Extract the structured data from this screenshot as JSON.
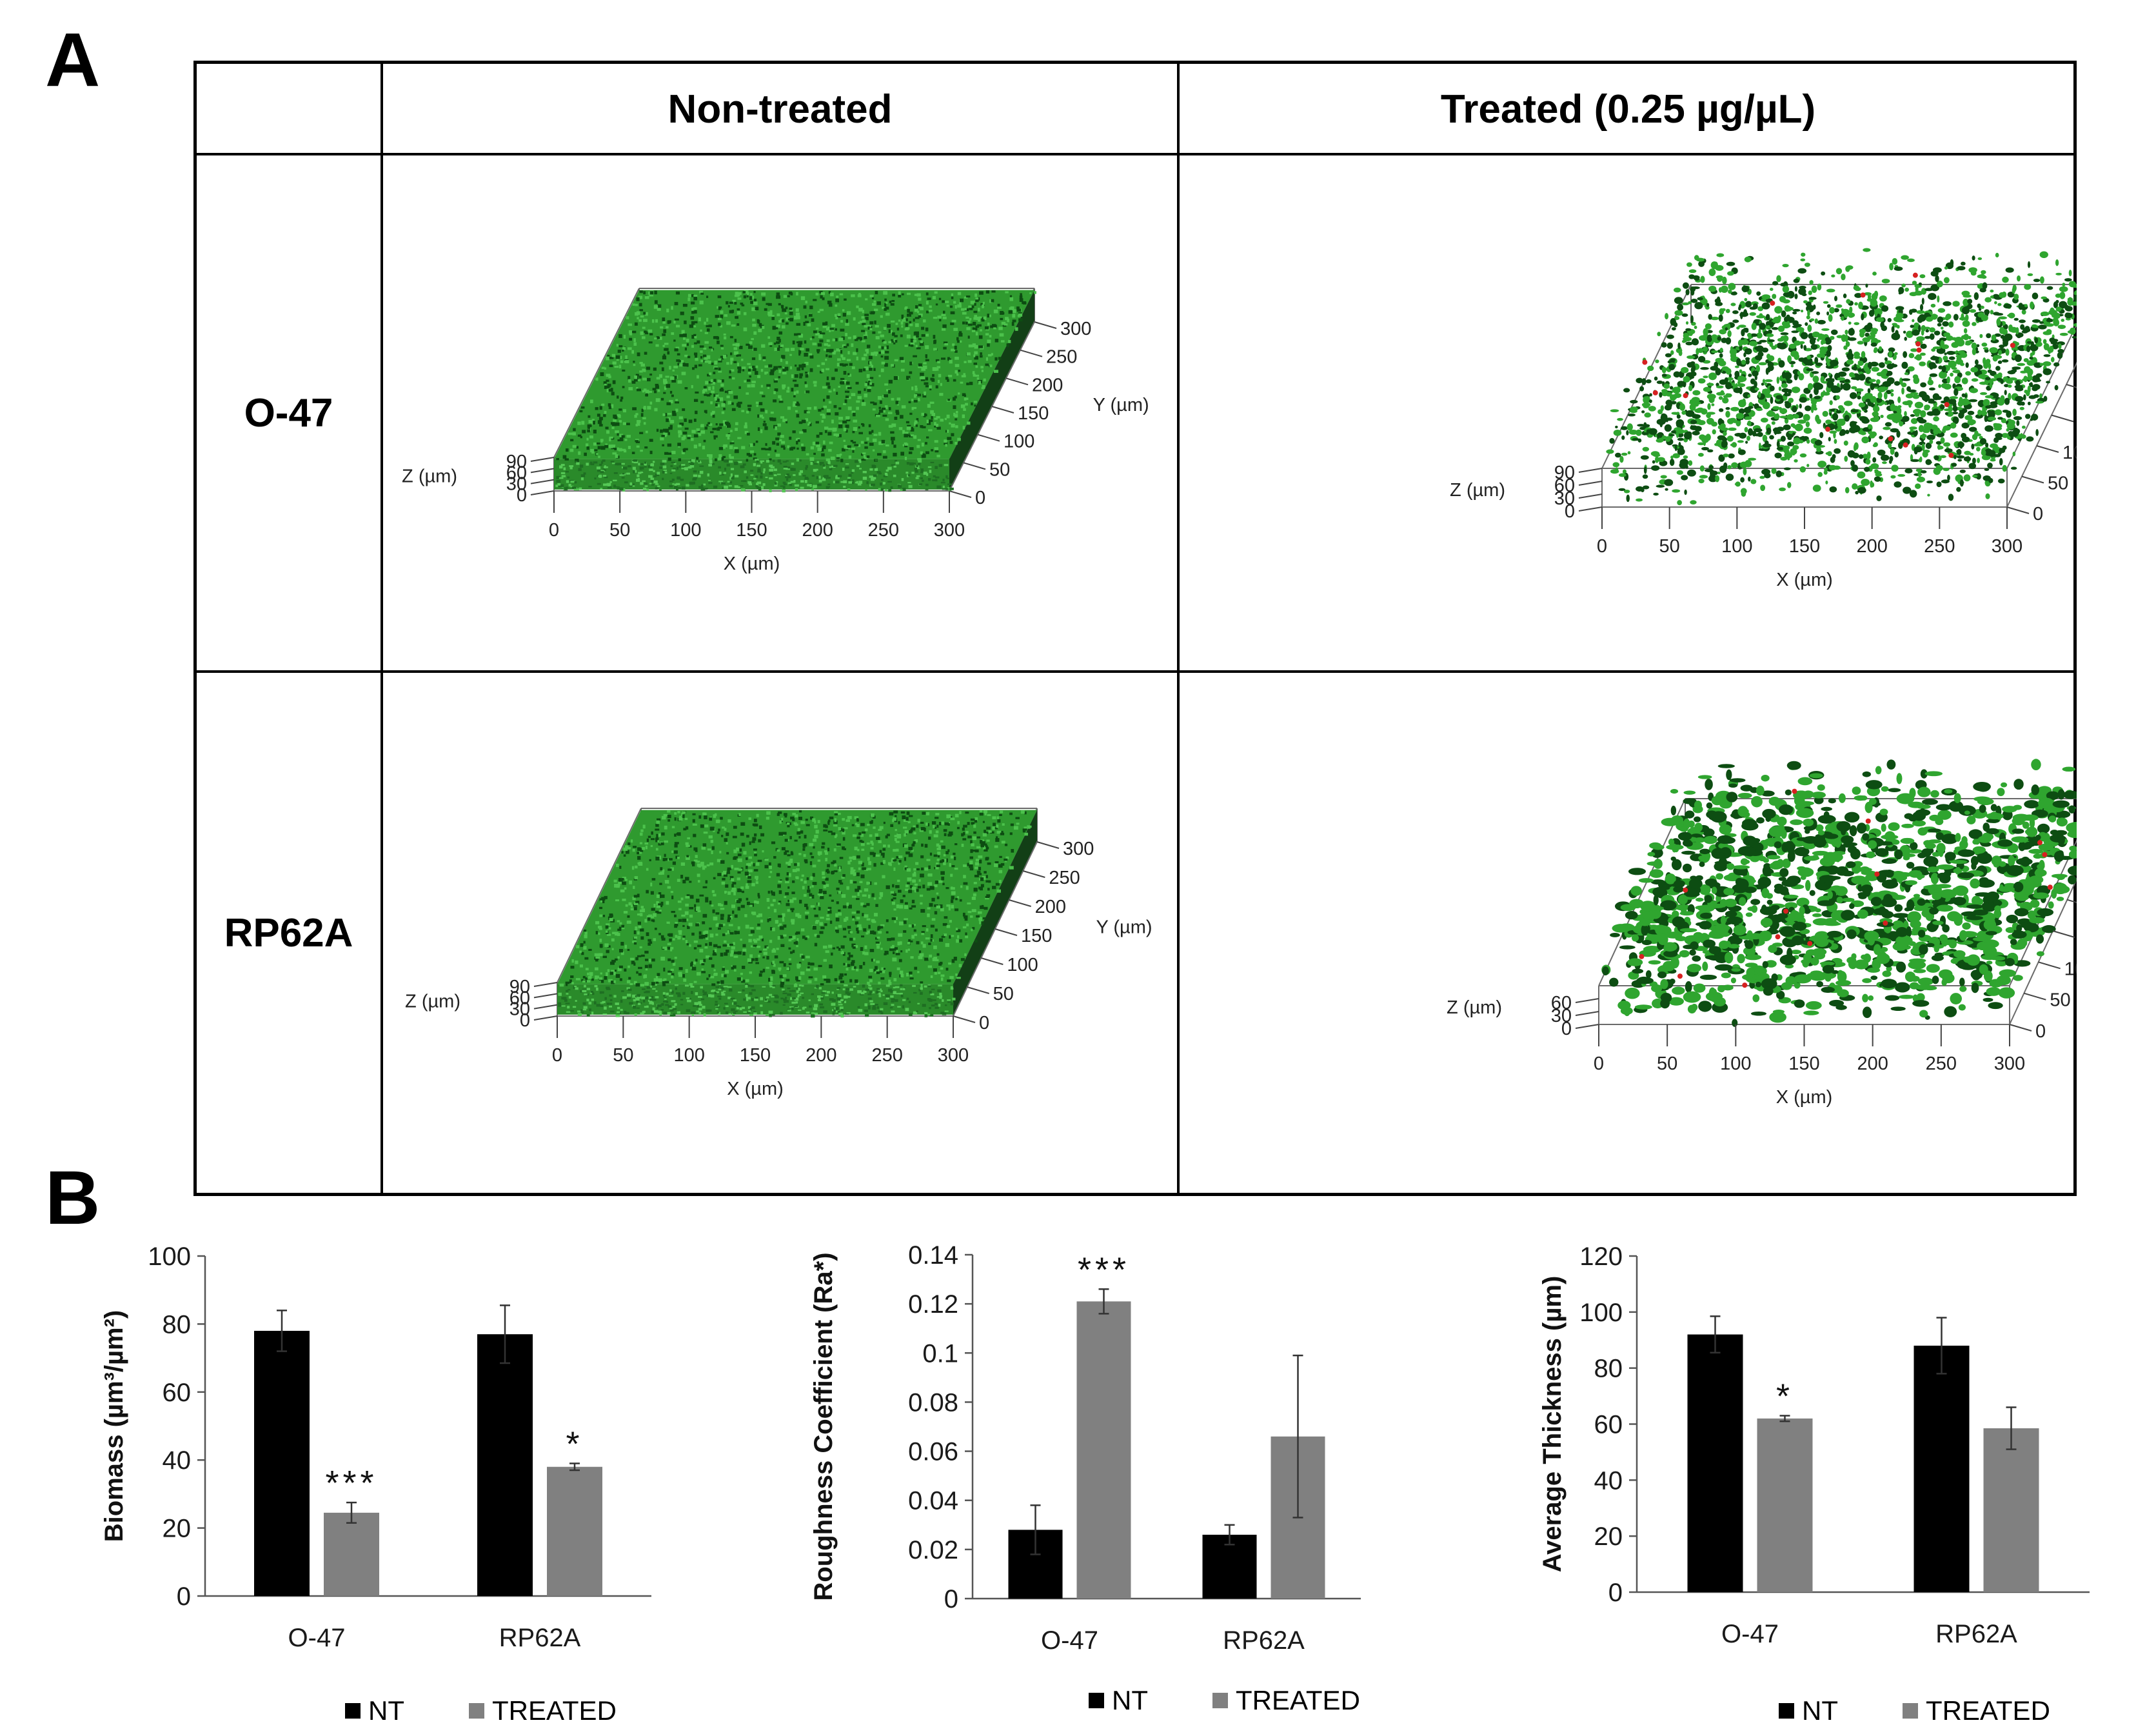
{
  "panel_a": {
    "letter": "A",
    "columns": [
      "Non-treated",
      "Treated (0.25 µg/µL)"
    ],
    "rows": [
      "O-47",
      "RP62A"
    ],
    "axis_labels": {
      "x": "X (µm)",
      "y": "Y (µm)",
      "z": "Z (µm)"
    },
    "x_ticks": [
      "0",
      "50",
      "100",
      "150",
      "200",
      "250",
      "300"
    ],
    "y_ticks": [
      "0",
      "50",
      "100",
      "150",
      "200",
      "250",
      "300"
    ],
    "z_ticks_full": [
      "0",
      "30",
      "60",
      "90"
    ],
    "z_ticks_short": [
      "0",
      "30",
      "60"
    ],
    "colors": {
      "biofilm": "#2fa52f",
      "biofilm_dark": "#0d4d12",
      "dead_cells": "#d62020"
    }
  },
  "panel_b": {
    "letter": "B",
    "legend": {
      "nt": "NT",
      "treated": "TREATED"
    },
    "colors": {
      "nt": "#000000",
      "treated": "#808080"
    }
  },
  "chart_data": [
    {
      "type": "bar",
      "categories": [
        "O-47",
        "RP62A"
      ],
      "series": [
        {
          "name": "NT",
          "values": [
            78,
            77
          ],
          "errors": [
            6,
            8.5
          ]
        },
        {
          "name": "TREATED",
          "values": [
            24.5,
            38
          ],
          "errors": [
            3,
            1
          ]
        }
      ],
      "ylabel": "Biomass (µm³/µm²)",
      "ylim": [
        0,
        100
      ],
      "yticks": [
        "0",
        "20",
        "40",
        "60",
        "80",
        "100"
      ],
      "significance": [
        "***",
        "*"
      ]
    },
    {
      "type": "bar",
      "categories": [
        "O-47",
        "RP62A"
      ],
      "series": [
        {
          "name": "NT",
          "values": [
            0.028,
            0.026
          ],
          "errors": [
            0.01,
            0.004
          ]
        },
        {
          "name": "TREATED",
          "values": [
            0.121,
            0.066
          ],
          "errors": [
            0.005,
            0.033
          ]
        }
      ],
      "ylabel": "Roughness  Coefficient (Ra*)",
      "ylim": [
        0,
        0.14
      ],
      "yticks": [
        "0",
        "0.02",
        "0.04",
        "0.06",
        "0.08",
        "0.1",
        "0.12",
        "0.14"
      ],
      "significance": [
        "***",
        ""
      ]
    },
    {
      "type": "bar",
      "categories": [
        "O-47",
        "RP62A"
      ],
      "series": [
        {
          "name": "NT",
          "values": [
            92,
            88
          ],
          "errors": [
            6.5,
            10
          ]
        },
        {
          "name": "TREATED",
          "values": [
            62,
            58.5
          ],
          "errors": [
            1,
            7.5
          ]
        }
      ],
      "ylabel": "Average Thickness (µm)",
      "ylim": [
        0,
        120
      ],
      "yticks": [
        "0",
        "20",
        "40",
        "60",
        "80",
        "100",
        "120"
      ],
      "significance": [
        "*",
        ""
      ]
    }
  ]
}
